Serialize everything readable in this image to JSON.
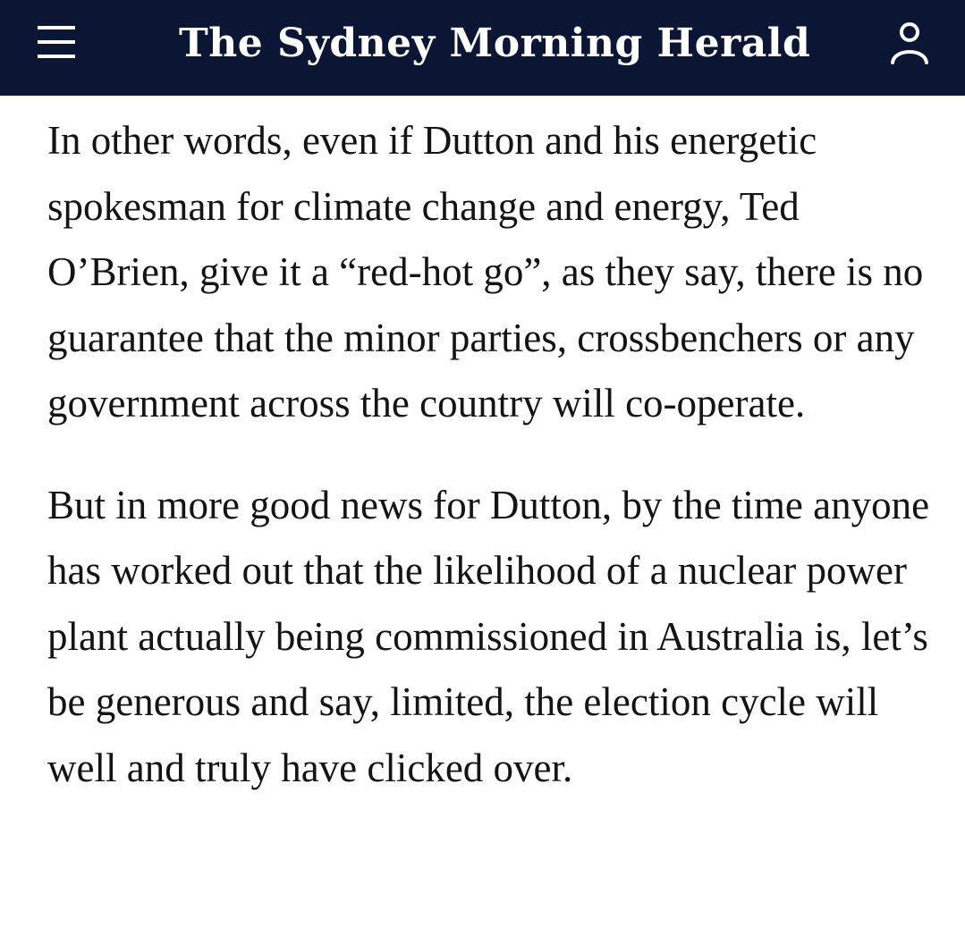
{
  "header": {
    "masthead": "The Sydney Morning Herald",
    "menu_icon": "hamburger-menu-icon",
    "account_icon": "user-account-icon",
    "background": "#0a1633"
  },
  "article": {
    "paragraphs": [
      "In other words, even if Dutton and his energetic spokesman for climate change and energy, Ted O’Brien, give it a “red-hot go”, as they say, there is no guarantee that the minor parties, crossbenchers or any government across the country will co-operate.",
      "But in more good news for Dutton, by the time anyone has worked out that the likelihood of a nuclear power plant actually being commissioned in Australia is, let’s be generous and say, limited, the election cycle will well and truly have clicked over."
    ]
  }
}
